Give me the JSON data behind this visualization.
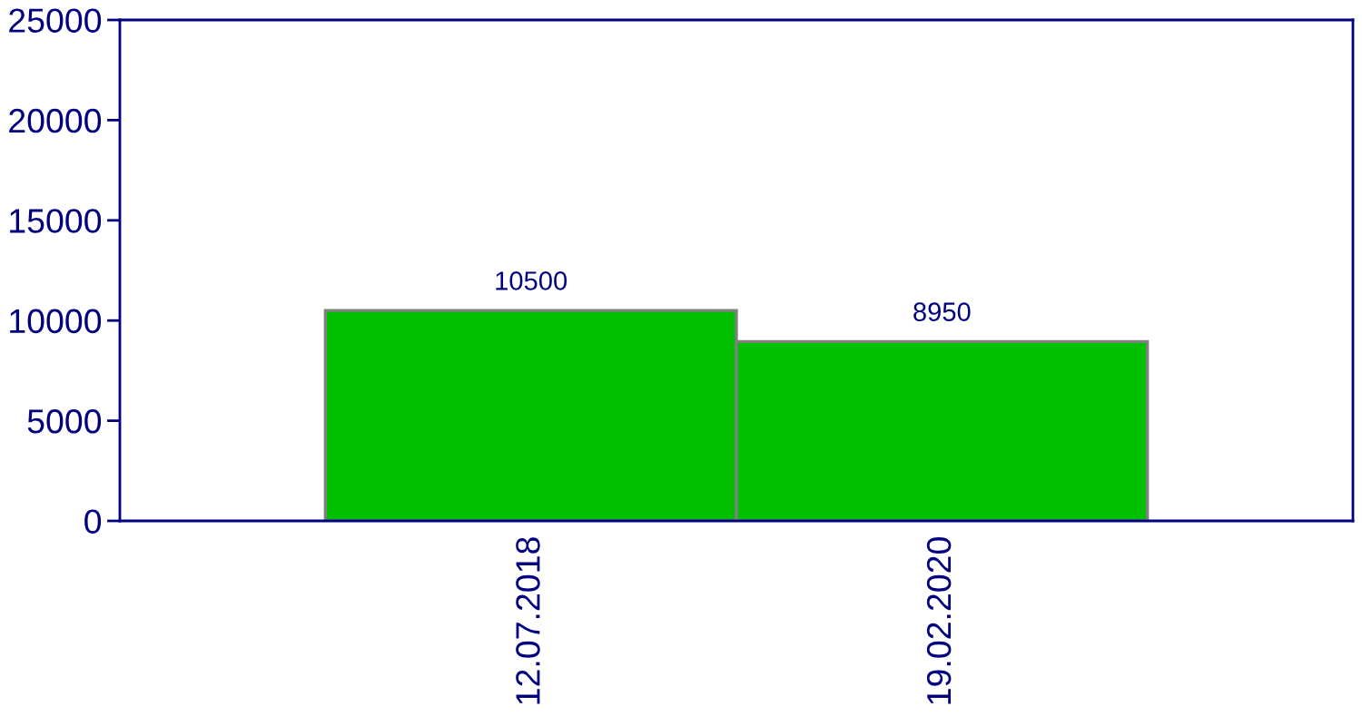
{
  "chart_data": {
    "type": "bar",
    "categories": [
      "12.07.2018",
      "19.02.2020"
    ],
    "values": [
      10500,
      8950
    ],
    "color": "#00c000",
    "ylim": [
      0,
      25000
    ],
    "yticks": [
      0,
      5000,
      10000,
      15000,
      20000,
      25000
    ],
    "data_labels": true,
    "grid": false,
    "legend": false
  }
}
